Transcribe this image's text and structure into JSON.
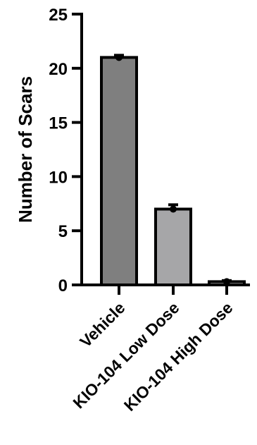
{
  "chart_data": {
    "type": "bar",
    "categories": [
      "Vehicle",
      "KIO-104 Low Dose",
      "KIO-104 High Dose"
    ],
    "values": [
      21,
      7,
      0.3
    ],
    "error": [
      0.2,
      0.4,
      0.1
    ],
    "ylabel": "Number of Scars",
    "xlabel": "",
    "title": "",
    "ylim": [
      0,
      25
    ],
    "yticks": [
      0,
      5,
      10,
      15,
      20,
      25
    ],
    "grid": false,
    "legend": "none",
    "colors": [
      "#7f7f7f",
      "#a6a6a8",
      "#c4c4c4"
    ],
    "data_points": [
      [
        21
      ],
      [
        7
      ],
      [
        0.3
      ]
    ]
  }
}
